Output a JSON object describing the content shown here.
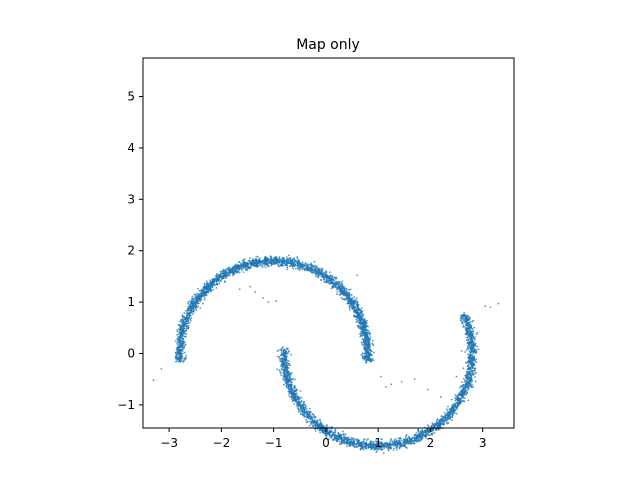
{
  "chart_data": {
    "type": "scatter",
    "title": "Map only",
    "xlabel": "",
    "ylabel": "",
    "xlim": [
      -3.5,
      3.6
    ],
    "ylim": [
      -1.45,
      5.75
    ],
    "xticks": [
      -3,
      -2,
      -1,
      0,
      1,
      2,
      3
    ],
    "yticks": [
      -1,
      0,
      1,
      2,
      3,
      4,
      5
    ],
    "xtick_labels": [
      "−3",
      "−2",
      "−1",
      "0",
      "1",
      "2",
      "3"
    ],
    "ytick_labels": [
      "−1",
      "0",
      "1",
      "2",
      "3",
      "4",
      "5"
    ],
    "grid": false,
    "legend": "none",
    "marker_color": "#1f77b4",
    "series": [
      {
        "shape": "upper-arc",
        "center": [
          -1.0,
          0.0
        ],
        "radius": 1.8,
        "angle_range_deg": [
          -5,
          185
        ],
        "points": 2600,
        "spread": 0.04
      },
      {
        "shape": "lower-arc",
        "center": [
          1.0,
          0.0
        ],
        "radius": 1.8,
        "angle_range_deg": [
          -183,
          25
        ],
        "points": 2600,
        "spread": 0.04
      },
      {
        "shape": "outliers",
        "x": [
          -3.3,
          -3.15,
          -2.75,
          -2.55,
          -2.4,
          -2.2,
          -2.05,
          -1.95,
          -1.8,
          -1.65,
          -1.45,
          -1.35,
          -1.2,
          -1.1,
          -0.95,
          0.0,
          0.6,
          0.9,
          1.05,
          1.15,
          1.25,
          1.45,
          1.7,
          1.95,
          2.2,
          2.5,
          2.75,
          3.05,
          3.15,
          3.3,
          2.9,
          2.6
        ],
        "y": [
          -0.52,
          -0.3,
          0.55,
          1.05,
          1.12,
          1.2,
          1.45,
          1.52,
          1.62,
          1.25,
          1.3,
          1.2,
          1.08,
          1.0,
          1.02,
          1.48,
          1.52,
          0.25,
          -0.45,
          -0.65,
          -0.6,
          -0.55,
          -0.5,
          -0.7,
          -0.85,
          -0.45,
          -0.3,
          0.92,
          0.9,
          0.97,
          0.4,
          0.05
        ]
      }
    ]
  }
}
